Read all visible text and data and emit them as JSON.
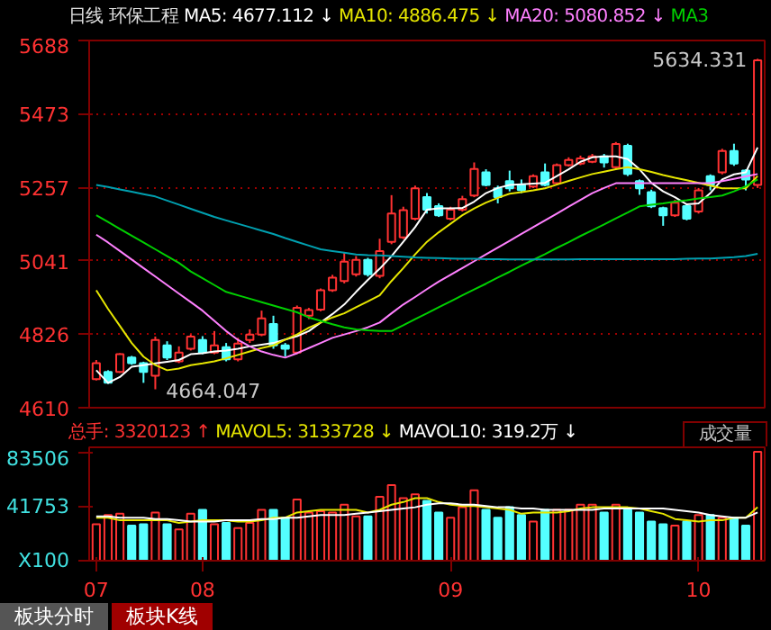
{
  "chart_data": [
    {
      "type": "candlestick",
      "title": "环保工程",
      "subtitle": "日线",
      "legend": "top",
      "grid": "y",
      "tick_labels": "y",
      "categories": [
        null,
        null,
        null,
        null,
        null,
        null,
        null,
        null,
        null,
        null,
        null,
        null,
        null,
        null,
        null,
        null,
        null,
        null,
        null,
        null,
        null,
        null,
        null,
        null,
        null,
        null,
        null,
        null,
        null,
        null,
        null,
        null,
        null,
        null,
        null,
        null,
        null,
        null,
        null,
        null,
        null,
        null,
        null,
        null,
        null,
        null,
        null,
        null,
        null,
        null,
        null,
        null,
        null,
        null,
        null,
        null,
        null
      ],
      "ylim": [
        4610,
        5688
      ],
      "yticks": [
        4610,
        4826,
        5041,
        5257,
        5473,
        5688
      ],
      "ohlc": [
        [
          4694,
          4750,
          4690,
          4741
        ],
        [
          4715,
          4720,
          4680,
          4683
        ],
        [
          4715,
          4770,
          4712,
          4767
        ],
        [
          4757,
          4762,
          4736,
          4741
        ],
        [
          4741,
          4745,
          4683,
          4715
        ],
        [
          4704,
          4819,
          4664.047,
          4809
        ],
        [
          4793,
          4805,
          4750,
          4757
        ],
        [
          4746,
          4790,
          4741,
          4772
        ],
        [
          4783,
          4825,
          4778,
          4819
        ],
        [
          4809,
          4820,
          4767,
          4772
        ],
        [
          4772,
          4835,
          4767,
          4793
        ],
        [
          4788,
          4800,
          4746,
          4752
        ],
        [
          4752,
          4815,
          4746,
          4798
        ],
        [
          4809,
          4840,
          4800,
          4825
        ],
        [
          4825,
          4895,
          4820,
          4872
        ],
        [
          4856,
          4880,
          4783,
          4793
        ],
        [
          4793,
          4800,
          4760,
          4783
        ],
        [
          4772,
          4910,
          4767,
          4903
        ],
        [
          4880,
          4903,
          4870,
          4897
        ],
        [
          4898,
          4960,
          4893,
          4955
        ],
        [
          4955,
          5000,
          4950,
          4992
        ],
        [
          4982,
          5065,
          4975,
          5039
        ],
        [
          5002,
          5055,
          4995,
          5044
        ],
        [
          5044,
          5050,
          4995,
          5002
        ],
        [
          4997,
          5106,
          4990,
          5070
        ],
        [
          5097,
          5234,
          5090,
          5180
        ],
        [
          5110,
          5200,
          5105,
          5190
        ],
        [
          5165,
          5262,
          5160,
          5254
        ],
        [
          5228,
          5240,
          5180,
          5191
        ],
        [
          5202,
          5210,
          5170,
          5175
        ],
        [
          5165,
          5200,
          5160,
          5191
        ],
        [
          5191,
          5232,
          5186,
          5222
        ],
        [
          5233,
          5330,
          5228,
          5311
        ],
        [
          5301,
          5310,
          5260,
          5264
        ],
        [
          5254,
          5262,
          5210,
          5228
        ],
        [
          5275,
          5306,
          5245,
          5254
        ],
        [
          5264,
          5280,
          5240,
          5249
        ],
        [
          5259,
          5295,
          5255,
          5290
        ],
        [
          5301,
          5327,
          5260,
          5264
        ],
        [
          5269,
          5327,
          5264,
          5322
        ],
        [
          5322,
          5345,
          5318,
          5337
        ],
        [
          5327,
          5350,
          5322,
          5342
        ],
        [
          5332,
          5355,
          5328,
          5348
        ],
        [
          5348,
          5355,
          5315,
          5330
        ],
        [
          5316,
          5390,
          5310,
          5384
        ],
        [
          5379,
          5385,
          5290,
          5296
        ],
        [
          5275,
          5280,
          5235,
          5254
        ],
        [
          5243,
          5250,
          5196,
          5201
        ],
        [
          5196,
          5200,
          5144,
          5175
        ],
        [
          5175,
          5220,
          5170,
          5212
        ],
        [
          5202,
          5210,
          5160,
          5165
        ],
        [
          5186,
          5255,
          5180,
          5248
        ],
        [
          5290,
          5295,
          5248,
          5264
        ],
        [
          5301,
          5370,
          5295,
          5364
        ],
        [
          5364,
          5385,
          5320,
          5327
        ],
        [
          5306,
          5310,
          5248,
          5280
        ],
        [
          5264,
          5634.331,
          5255,
          5630
        ]
      ],
      "colors": [
        "#ff3232",
        "#54ffff",
        "#ff3232",
        "#54ffff",
        "#54ffff",
        "#ff3232",
        "#54ffff",
        "#ff3232",
        "#ff3232",
        "#54ffff",
        "#ff3232",
        "#54ffff",
        "#ff3232",
        "#ff3232",
        "#ff3232",
        "#54ffff",
        "#54ffff",
        "#ff3232",
        "#ff3232",
        "#ff3232",
        "#ff3232",
        "#ff3232",
        "#ff3232",
        "#54ffff",
        "#ff3232",
        "#ff3232",
        "#ff3232",
        "#ff3232",
        "#54ffff",
        "#54ffff",
        "#ff3232",
        "#ff3232",
        "#ff3232",
        "#54ffff",
        "#54ffff",
        "#54ffff",
        "#54ffff",
        "#ff3232",
        "#54ffff",
        "#ff3232",
        "#ff3232",
        "#ff3232",
        "#ff3232",
        "#54ffff",
        "#ff3232",
        "#54ffff",
        "#54ffff",
        "#54ffff",
        "#54ffff",
        "#ff3232",
        "#54ffff",
        "#ff3232",
        "#54ffff",
        "#ff3232",
        "#54ffff",
        "#54ffff",
        "#ff3232"
      ],
      "series": [
        {
          "type": "line",
          "name": "MA5: 4677.112 ↓",
          "color": "#ffffff",
          "values": [
            4720,
            4683,
            4700,
            4730,
            4735,
            4740,
            4745,
            4750,
            4767,
            4770,
            4775,
            4778,
            4783,
            4790,
            4795,
            4800,
            4810,
            4820,
            4835,
            4860,
            4885,
            4913,
            4950,
            4985,
            5018,
            5055,
            5097,
            5140,
            5191,
            5195,
            5195,
            5196,
            5215,
            5240,
            5255,
            5264,
            5266,
            5268,
            5270,
            5290,
            5310,
            5332,
            5345,
            5348,
            5348,
            5340,
            5310,
            5270,
            5245,
            5228,
            5207,
            5210,
            5240,
            5280,
            5295,
            5301,
            5374
          ]
        },
        {
          "type": "line",
          "name": "MA10: 4886.475 ↓",
          "color": "#e6e600",
          "values": [
            4955,
            4900,
            4850,
            4800,
            4760,
            4735,
            4720,
            4725,
            4735,
            4740,
            4746,
            4755,
            4765,
            4775,
            4785,
            4793,
            4810,
            4825,
            4845,
            4860,
            4875,
            4887,
            4905,
            4922,
            4940,
            4982,
            5020,
            5060,
            5097,
            5125,
            5150,
            5175,
            5195,
            5212,
            5226,
            5238,
            5243,
            5248,
            5254,
            5265,
            5276,
            5286,
            5296,
            5303,
            5310,
            5316,
            5310,
            5302,
            5293,
            5285,
            5278,
            5270,
            5262,
            5254,
            5254,
            5254,
            5290
          ]
        },
        {
          "type": "line",
          "name": "MA20: 5080.852 ↓",
          "color": "#ff80ff",
          "values": [
            5118,
            5095,
            5070,
            5045,
            5020,
            4995,
            4970,
            4945,
            4920,
            4895,
            4865,
            4835,
            4809,
            4790,
            4775,
            4765,
            4757,
            4770,
            4785,
            4800,
            4815,
            4825,
            4835,
            4846,
            4860,
            4887,
            4913,
            4935,
            4958,
            4980,
            5000,
            5020,
            5040,
            5060,
            5080,
            5100,
            5120,
            5140,
            5160,
            5180,
            5200,
            5220,
            5240,
            5255,
            5269,
            5269,
            5269,
            5269,
            5269,
            5269,
            5269,
            5269,
            5269,
            5275,
            5282,
            5289,
            5296
          ]
        },
        {
          "type": "line",
          "name": "MA3",
          "color": "#00d000",
          "values": [
            5175,
            5155,
            5135,
            5115,
            5095,
            5075,
            5055,
            5035,
            5010,
            4990,
            4970,
            4950,
            4940,
            4930,
            4920,
            4910,
            4900,
            4890,
            4875,
            4865,
            4855,
            4846,
            4840,
            4837,
            4835,
            4835,
            4852,
            4870,
            4887,
            4905,
            4922,
            4940,
            4957,
            4974,
            4992,
            5009,
            5027,
            5044,
            5061,
            5079,
            5096,
            5114,
            5131,
            5148,
            5166,
            5183,
            5201,
            5206,
            5210,
            5215,
            5219,
            5224,
            5228,
            5233,
            5245,
            5260,
            5280
          ]
        },
        {
          "type": "line",
          "color": "#00a0b0",
          "values": [
            5264,
            5258,
            5251,
            5244,
            5237,
            5230,
            5218,
            5206,
            5194,
            5182,
            5170,
            5160,
            5150,
            5140,
            5130,
            5120,
            5108,
            5097,
            5086,
            5075,
            5070,
            5065,
            5060,
            5058,
            5057,
            5055,
            5053,
            5051,
            5050,
            5049,
            5048,
            5047,
            5047,
            5046,
            5046,
            5045,
            5045,
            5045,
            5045,
            5045,
            5045,
            5046,
            5046,
            5046,
            5046,
            5046,
            5046,
            5046,
            5046,
            5046,
            5047,
            5048,
            5048,
            5050,
            5052,
            5055,
            5062
          ]
        }
      ],
      "annotations": [
        "5634.331",
        "4664.047"
      ]
    },
    {
      "type": "bar",
      "legend": "top",
      "legend_title": "成交量",
      "categories": [
        "07",
        null,
        null,
        null,
        null,
        null,
        null,
        null,
        null,
        "08",
        null,
        null,
        null,
        null,
        null,
        null,
        null,
        null,
        null,
        null,
        null,
        null,
        null,
        null,
        null,
        null,
        null,
        null,
        null,
        null,
        "09",
        null,
        null,
        null,
        null,
        null,
        null,
        null,
        null,
        null,
        null,
        null,
        null,
        null,
        null,
        null,
        null,
        null,
        null,
        null,
        null,
        "10",
        null,
        null,
        null,
        null,
        null
      ],
      "ylim": [
        0,
        87000
      ],
      "yticks": [
        {
          "value": 0,
          "label": "X100"
        },
        41753,
        83506
      ],
      "series": [
        {
          "type": "bar",
          "name": "总手: 3320123 ↑",
          "color": "#ff3232",
          "colors": [
            "#ff3232",
            "#ff3232",
            "#ff3232",
            "#54ffff",
            "#54ffff",
            "#ff3232",
            "#54ffff",
            "#ff3232",
            "#ff3232",
            "#54ffff",
            "#ff3232",
            "#54ffff",
            "#ff3232",
            "#ff3232",
            "#ff3232",
            "#54ffff",
            "#54ffff",
            "#ff3232",
            "#ff3232",
            "#ff3232",
            "#ff3232",
            "#ff3232",
            "#ff3232",
            "#54ffff",
            "#ff3232",
            "#ff3232",
            "#ff3232",
            "#ff3232",
            "#54ffff",
            "#54ffff",
            "#ff3232",
            "#ff3232",
            "#ff3232",
            "#54ffff",
            "#54ffff",
            "#54ffff",
            "#54ffff",
            "#ff3232",
            "#54ffff",
            "#ff3232",
            "#ff3232",
            "#ff3232",
            "#ff3232",
            "#54ffff",
            "#ff3232",
            "#54ffff",
            "#54ffff",
            "#54ffff",
            "#54ffff",
            "#ff3232",
            "#54ffff",
            "#ff3232",
            "#54ffff",
            "#ff3232",
            "#54ffff",
            "#54ffff",
            "#ff3232"
          ],
          "values": [
            28000,
            35000,
            36000,
            27000,
            28000,
            37000,
            28000,
            24000,
            36000,
            39000,
            28000,
            29000,
            25000,
            29000,
            39000,
            39000,
            33000,
            47000,
            37000,
            38000,
            37000,
            43000,
            34000,
            34000,
            49000,
            58000,
            48000,
            51000,
            46000,
            37000,
            33000,
            41000,
            54000,
            39000,
            33000,
            41000,
            35000,
            30000,
            39000,
            39000,
            39000,
            43000,
            43000,
            37000,
            43000,
            39000,
            37000,
            30000,
            28000,
            27000,
            30000,
            35000,
            35000,
            33000,
            33000,
            27000,
            83506
          ]
        },
        {
          "type": "line",
          "name": "MAVOL5: 3133728 ↓",
          "color": "#e6e600",
          "values": [
            33000,
            33000,
            31000,
            31000,
            31000,
            31000,
            31000,
            29000,
            30000,
            31000,
            31000,
            31000,
            30000,
            30000,
            31000,
            33000,
            33000,
            37000,
            38000,
            39000,
            39000,
            39000,
            39000,
            37000,
            39000,
            43000,
            45000,
            48000,
            48000,
            45000,
            43000,
            42000,
            42000,
            41000,
            40000,
            39000,
            36000,
            37000,
            37000,
            37000,
            38000,
            40000,
            41000,
            41000,
            41000,
            41000,
            40000,
            38000,
            36000,
            32000,
            31000,
            30000,
            31000,
            31000,
            33000,
            33000,
            41000
          ]
        },
        {
          "type": "line",
          "name": "MAVOL10: 319.2万 ↓",
          "color": "#ffffff",
          "values": [
            34000,
            34000,
            33000,
            33000,
            33000,
            32000,
            32000,
            31000,
            30000,
            30000,
            30000,
            31000,
            31000,
            31000,
            32000,
            32000,
            33000,
            33000,
            34000,
            35000,
            35000,
            35000,
            36000,
            37000,
            38000,
            39000,
            40000,
            41000,
            43000,
            44000,
            44000,
            43000,
            43000,
            42000,
            41000,
            41000,
            40000,
            40000,
            39000,
            39000,
            39000,
            39000,
            39000,
            40000,
            40000,
            40000,
            40000,
            40000,
            40000,
            39000,
            38000,
            37000,
            35000,
            34000,
            33000,
            33000,
            37000
          ]
        }
      ],
      "annotations": [
        "板块分时",
        "板块K线"
      ]
    }
  ]
}
